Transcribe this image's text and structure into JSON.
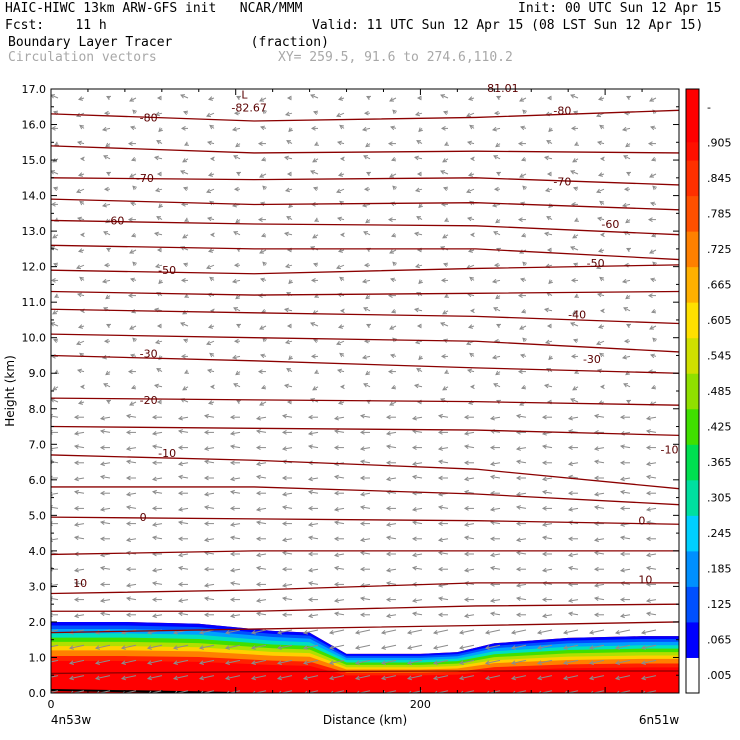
{
  "header": {
    "model_line": "HAIC-HIWC 13km ARW-GFS init   NCAR/MMM",
    "fcst_line": "Fcst:    11 h",
    "init_line": "Init: 00 UTC Sun 12 Apr 15",
    "valid_line": "Valid: 11 UTC Sun 12 Apr 15 (08 LST Sun 12 Apr 15)",
    "field_line": "Boundary Layer Tracer          (fraction)",
    "vectors_line": "Circulation vectors",
    "xy_line": "XY= 259.5, 91.6 to 274.6,110.2"
  },
  "colors": {
    "contour": "#8b0000",
    "vector": "#8c8c8c",
    "shade_palette": [
      "#ffffff",
      "#0000ff",
      "#0060ff",
      "#00a0ff",
      "#00e0e0",
      "#00e080",
      "#40e000",
      "#a0e000",
      "#e0e000",
      "#ffc000",
      "#ff8000",
      "#ff4000",
      "#ff0000"
    ]
  },
  "chart_data": {
    "type": "heatmap",
    "description_kind": "vertical cross-section with shaded tracer fraction, temperature contours and circulation vectors",
    "xlabel": "Distance (km)",
    "ylabel": "Height (km)",
    "xlim": [
      0,
      340
    ],
    "ylim": [
      0,
      17
    ],
    "x_ticks": [
      0,
      200
    ],
    "x_end_labels": [
      "4n53w",
      "6n51w"
    ],
    "y_ticks": [
      "0.0",
      "1.0",
      "2.0",
      "3.0",
      "4.0",
      "5.0",
      "6.0",
      "7.0",
      "8.0",
      "9.0",
      "10.0",
      "11.0",
      "12.0",
      "13.0",
      "14.0",
      "15.0",
      "16.0",
      "17.0"
    ],
    "colorbar_labels": [
      ".005",
      ".065",
      ".125",
      ".185",
      ".245",
      ".305",
      ".365",
      ".425",
      ".485",
      ".545",
      ".605",
      ".665",
      ".725",
      ".785",
      ".845",
      ".905",
      "-"
    ],
    "tracer_top_km": [
      {
        "x": 0,
        "top": 2.0
      },
      {
        "x": 40,
        "top": 2.0
      },
      {
        "x": 80,
        "top": 1.95
      },
      {
        "x": 120,
        "top": 1.75
      },
      {
        "x": 140,
        "top": 1.7
      },
      {
        "x": 160,
        "top": 1.1
      },
      {
        "x": 180,
        "top": 1.1
      },
      {
        "x": 200,
        "top": 1.1
      },
      {
        "x": 220,
        "top": 1.15
      },
      {
        "x": 240,
        "top": 1.4
      },
      {
        "x": 280,
        "top": 1.55
      },
      {
        "x": 320,
        "top": 1.6
      },
      {
        "x": 340,
        "top": 1.6
      }
    ],
    "contours": [
      {
        "label": "10",
        "y": [
          2.8,
          2.9,
          3.1,
          3.1
        ]
      },
      {
        "label": "0",
        "y": [
          4.95,
          4.9,
          4.85,
          4.75
        ]
      },
      {
        "label": "-10",
        "y": [
          6.7,
          6.55,
          6.3,
          5.75
        ]
      },
      {
        "label": "-20",
        "y": [
          8.3,
          8.25,
          8.2,
          8.1
        ]
      },
      {
        "label": "-30",
        "y": [
          9.5,
          9.35,
          9.15,
          9.0
        ]
      },
      {
        "label": "-40",
        "y": [
          10.8,
          10.7,
          10.6,
          10.4
        ]
      },
      {
        "label": "-50",
        "y": [
          11.9,
          11.8,
          11.95,
          12.05
        ]
      },
      {
        "label": "-60",
        "y": [
          13.3,
          13.2,
          13.15,
          12.9
        ]
      },
      {
        "label": "-70",
        "y": [
          14.5,
          14.45,
          14.5,
          14.3
        ]
      },
      {
        "label": "-80",
        "y": [
          16.3,
          16.1,
          16.2,
          16.4
        ]
      }
    ],
    "contour_labels": [
      {
        "text": "10",
        "x": 12,
        "y": 3.1
      },
      {
        "text": "10",
        "x": 318,
        "y": 3.2
      },
      {
        "text": "0",
        "x": 48,
        "y": 4.95
      },
      {
        "text": "0",
        "x": 318,
        "y": 4.85
      },
      {
        "text": "-10",
        "x": 58,
        "y": 6.75
      },
      {
        "text": "-10",
        "x": 330,
        "y": 6.85
      },
      {
        "text": "-20",
        "x": 48,
        "y": 8.25
      },
      {
        "text": "-30",
        "x": 48,
        "y": 9.55
      },
      {
        "text": "-30",
        "x": 288,
        "y": 9.4
      },
      {
        "text": "-40",
        "x": 280,
        "y": 10.65
      },
      {
        "text": "-50",
        "x": 58,
        "y": 11.9
      },
      {
        "text": "-50",
        "x": 290,
        "y": 12.1
      },
      {
        "text": "-60",
        "x": 30,
        "y": 13.3
      },
      {
        "text": "-60",
        "x": 298,
        "y": 13.2
      },
      {
        "text": "-70",
        "x": 46,
        "y": 14.5
      },
      {
        "text": "-70",
        "x": 272,
        "y": 14.4
      },
      {
        "text": "-80",
        "x": 48,
        "y": 16.2
      },
      {
        "text": "-80",
        "x": 272,
        "y": 16.4
      }
    ],
    "low_marker": {
      "letter": "L",
      "value": "-82.67",
      "x": 102,
      "y": 16.7
    },
    "top_partial_label": {
      "text": "-81.01",
      "x": 234,
      "y": 17.1
    }
  }
}
